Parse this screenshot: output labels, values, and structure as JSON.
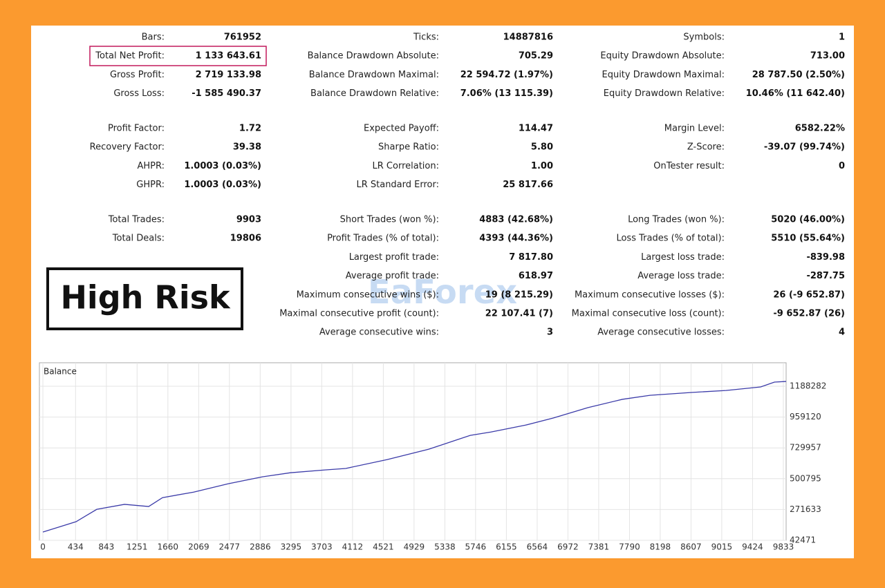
{
  "report": {
    "groups": [
      {
        "columns": [
          [
            [
              "Bars:",
              "761952"
            ],
            [
              "Total Net Profit:",
              "1 133 643.61"
            ],
            [
              "Gross Profit:",
              "2 719 133.98"
            ],
            [
              "Gross Loss:",
              "-1 585 490.37"
            ]
          ],
          [
            [
              "Ticks:",
              "14887816"
            ],
            [
              "Balance Drawdown Absolute:",
              "705.29"
            ],
            [
              "Balance Drawdown Maximal:",
              "22 594.72 (1.97%)"
            ],
            [
              "Balance Drawdown Relative:",
              "7.06% (13 115.39)"
            ]
          ],
          [
            [
              "Symbols:",
              "1"
            ],
            [
              "Equity Drawdown Absolute:",
              "713.00"
            ],
            [
              "Equity Drawdown Maximal:",
              "28 787.50 (2.50%)"
            ],
            [
              "Equity Drawdown Relative:",
              "10.46% (11 642.40)"
            ]
          ]
        ]
      },
      {
        "columns": [
          [
            [
              "Profit Factor:",
              "1.72"
            ],
            [
              "Recovery Factor:",
              "39.38"
            ],
            [
              "AHPR:",
              "1.0003 (0.03%)"
            ],
            [
              "GHPR:",
              "1.0003 (0.03%)"
            ]
          ],
          [
            [
              "Expected Payoff:",
              "114.47"
            ],
            [
              "Sharpe Ratio:",
              "5.80"
            ],
            [
              "LR Correlation:",
              "1.00"
            ],
            [
              "LR Standard Error:",
              "25 817.66"
            ]
          ],
          [
            [
              "Margin Level:",
              "6582.22%"
            ],
            [
              "Z-Score:",
              "-39.07 (99.74%)"
            ],
            [
              "OnTester result:",
              "0"
            ]
          ]
        ]
      },
      {
        "columns": [
          [
            [
              "Total Trades:",
              "9903"
            ],
            [
              "Total Deals:",
              "19806"
            ]
          ],
          [
            [
              "Short Trades (won %):",
              "4883 (42.68%)"
            ],
            [
              "Profit Trades (% of total):",
              "4393 (44.36%)"
            ],
            [
              "Largest profit trade:",
              "7 817.80"
            ],
            [
              "Average profit trade:",
              "618.97"
            ],
            [
              "Maximum consecutive wins ($):",
              "19 (8 215.29)"
            ],
            [
              "Maximal consecutive profit (count):",
              "22 107.41 (7)"
            ],
            [
              "Average consecutive wins:",
              "3"
            ]
          ],
          [
            [
              "Long Trades (won %):",
              "5020 (46.00%)"
            ],
            [
              "Loss Trades (% of total):",
              "5510 (55.64%)"
            ],
            [
              "Largest loss trade:",
              "-839.98"
            ],
            [
              "Average loss trade:",
              "-287.75"
            ],
            [
              "Maximum consecutive losses ($):",
              "26 (-9 652.87)"
            ],
            [
              "Maximal consecutive loss (count):",
              "-9 652.87 (26)"
            ],
            [
              "Average consecutive losses:",
              "4"
            ]
          ]
        ]
      }
    ],
    "risk_badge": "High Risk",
    "watermark": "EaForex"
  },
  "chart_data": {
    "type": "line",
    "x": [
      0,
      441,
      716,
      1084,
      1405,
      1589,
      2002,
      2461,
      2920,
      3287,
      3747,
      4022,
      4573,
      5124,
      5675,
      5950,
      6409,
      6777,
      7236,
      7695,
      8062,
      8613,
      9073,
      9532,
      9715,
      9870
    ],
    "series": [
      {
        "name": "Balance",
        "color": "#3a3aa8",
        "values": [
          104000,
          181000,
          273000,
          310000,
          294000,
          360000,
          401000,
          463000,
          515000,
          545000,
          566000,
          577000,
          643000,
          720000,
          823000,
          848000,
          899000,
          952000,
          1029000,
          1091000,
          1121000,
          1142000,
          1157000,
          1183000,
          1219000,
          1224000
        ]
      }
    ],
    "xlim": [
      -46,
      9870
    ],
    "ylim": [
      42471,
      1363000
    ],
    "xticks": [
      0,
      434,
      843,
      1251,
      1660,
      2069,
      2477,
      2886,
      3295,
      3703,
      4112,
      4521,
      4929,
      5338,
      5746,
      6155,
      6564,
      6972,
      7381,
      7790,
      8198,
      8607,
      9015,
      9424,
      9833
    ],
    "yticks": [
      42471,
      271633,
      500795,
      729957,
      959120,
      1188282
    ],
    "grid": true
  }
}
